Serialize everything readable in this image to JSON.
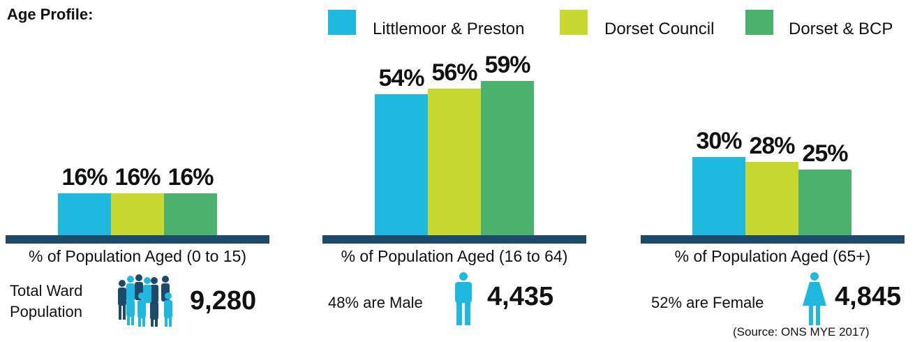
{
  "header": {
    "title": "Age Profile:"
  },
  "legend": [
    {
      "label": "Littlemoor & Preston",
      "color": "#1fb9e0"
    },
    {
      "label": "Dorset Council",
      "color": "#c9d731"
    },
    {
      "label": "Dorset & BCP",
      "color": "#4ab26c"
    }
  ],
  "colors": {
    "baseline": "#1b4a6b",
    "icon_dark": "#1b4a6b",
    "icon_light": "#1fb9e0"
  },
  "chart_data": {
    "type": "bar",
    "categories": [
      "% of Population Aged (0 to 15)",
      "% of Population Aged (16 to 64)",
      "% of Population Aged (65+)"
    ],
    "series": [
      {
        "name": "Littlemoor & Preston",
        "values": [
          16,
          54,
          30
        ],
        "labels": [
          "16%",
          "54%",
          "30%"
        ]
      },
      {
        "name": "Dorset Council",
        "values": [
          16,
          56,
          28
        ],
        "labels": [
          "16%",
          "56%",
          "28%"
        ]
      },
      {
        "name": "Dorset & BCP",
        "values": [
          16,
          59,
          25
        ],
        "labels": [
          "16%",
          "59%",
          "25%"
        ]
      }
    ],
    "ylim": [
      0,
      100
    ]
  },
  "stats": {
    "total": {
      "label_line1": "Total Ward",
      "label_line2": "Population",
      "value": "9,280",
      "icon": "people-group-icon"
    },
    "male": {
      "label": "48% are Male",
      "value": "4,435",
      "icon": "male-person-icon"
    },
    "female": {
      "label": "52% are Female",
      "value": "4,845",
      "icon": "female-person-icon"
    }
  },
  "source": "(Source: ONS MYE 2017)"
}
